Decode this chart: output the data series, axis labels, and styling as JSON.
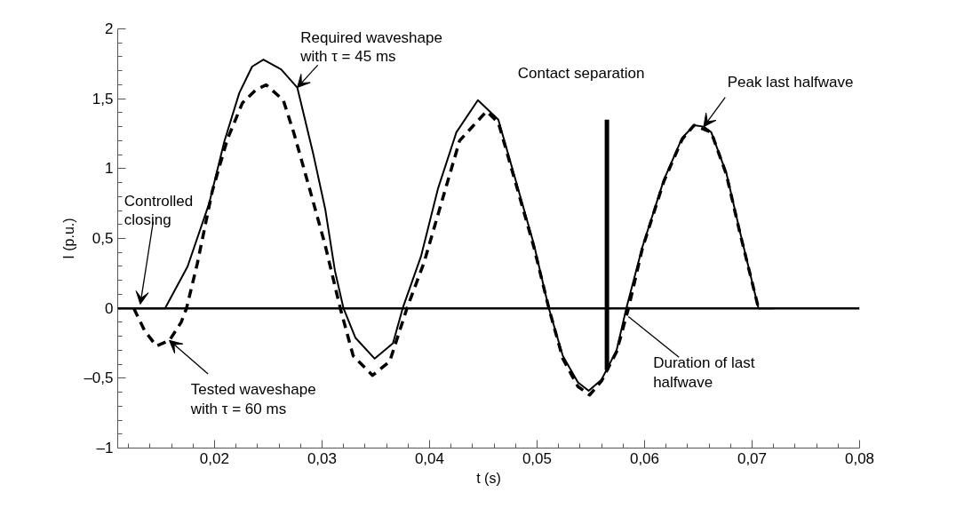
{
  "chart_data": {
    "type": "line",
    "xlabel": "t (s)",
    "ylabel": "I (p.u.)",
    "xlim": [
      0.011,
      0.08
    ],
    "ylim": [
      -1,
      2
    ],
    "xticks": [
      {
        "value": 0.012,
        "label": null
      },
      {
        "value": 0.014,
        "label": null
      },
      {
        "value": 0.016,
        "label": null
      },
      {
        "value": 0.018,
        "label": null
      },
      {
        "value": 0.02,
        "label": "0,02"
      },
      {
        "value": 0.022,
        "label": null
      },
      {
        "value": 0.024,
        "label": null
      },
      {
        "value": 0.026,
        "label": null
      },
      {
        "value": 0.028,
        "label": null
      },
      {
        "value": 0.03,
        "label": "0,03"
      },
      {
        "value": 0.032,
        "label": null
      },
      {
        "value": 0.034,
        "label": null
      },
      {
        "value": 0.036,
        "label": null
      },
      {
        "value": 0.038,
        "label": null
      },
      {
        "value": 0.04,
        "label": "0,04"
      },
      {
        "value": 0.042,
        "label": null
      },
      {
        "value": 0.044,
        "label": null
      },
      {
        "value": 0.046,
        "label": null
      },
      {
        "value": 0.048,
        "label": null
      },
      {
        "value": 0.05,
        "label": "0,05"
      },
      {
        "value": 0.052,
        "label": null
      },
      {
        "value": 0.054,
        "label": null
      },
      {
        "value": 0.056,
        "label": null
      },
      {
        "value": 0.058,
        "label": null
      },
      {
        "value": 0.06,
        "label": "0,06"
      },
      {
        "value": 0.062,
        "label": null
      },
      {
        "value": 0.064,
        "label": null
      },
      {
        "value": 0.066,
        "label": null
      },
      {
        "value": 0.068,
        "label": null
      },
      {
        "value": 0.07,
        "label": "0,07"
      },
      {
        "value": 0.072,
        "label": null
      },
      {
        "value": 0.074,
        "label": null
      },
      {
        "value": 0.076,
        "label": null
      },
      {
        "value": 0.078,
        "label": null
      },
      {
        "value": 0.08,
        "label": "0,08"
      }
    ],
    "yticks": [
      {
        "value": -1,
        "label": "–1"
      },
      {
        "value": -0.9,
        "label": null
      },
      {
        "value": -0.8,
        "label": null
      },
      {
        "value": -0.7,
        "label": null
      },
      {
        "value": -0.6,
        "label": null
      },
      {
        "value": -0.5,
        "label": "–0,5"
      },
      {
        "value": -0.4,
        "label": null
      },
      {
        "value": -0.3,
        "label": null
      },
      {
        "value": -0.2,
        "label": null
      },
      {
        "value": -0.1,
        "label": null
      },
      {
        "value": 0,
        "label": "0"
      },
      {
        "value": 0.1,
        "label": null
      },
      {
        "value": 0.2,
        "label": null
      },
      {
        "value": 0.3,
        "label": null
      },
      {
        "value": 0.4,
        "label": null
      },
      {
        "value": 0.5,
        "label": "0,5"
      },
      {
        "value": 0.6,
        "label": null
      },
      {
        "value": 0.7,
        "label": null
      },
      {
        "value": 0.8,
        "label": null
      },
      {
        "value": 0.9,
        "label": null
      },
      {
        "value": 1,
        "label": "1"
      },
      {
        "value": 1.1,
        "label": null
      },
      {
        "value": 1.2,
        "label": null
      },
      {
        "value": 1.3,
        "label": null
      },
      {
        "value": 1.4,
        "label": null
      },
      {
        "value": 1.5,
        "label": "1,5"
      },
      {
        "value": 1.6,
        "label": null
      },
      {
        "value": 1.7,
        "label": null
      },
      {
        "value": 1.8,
        "label": null
      },
      {
        "value": 1.9,
        "label": null
      },
      {
        "value": 2,
        "label": "2"
      }
    ],
    "series": [
      {
        "color": "#000000",
        "line_style": "solid",
        "x": [
          0.011,
          0.0154,
          0.0175,
          0.0195,
          0.0209,
          0.0223,
          0.0235,
          0.02455,
          0.0262,
          0.0277,
          0.0292,
          0.0303,
          0.0312,
          0.032,
          0.0331,
          0.0349,
          0.0366,
          0.0375,
          0.0392,
          0.0408,
          0.0425,
          0.0445,
          0.0464,
          0.048,
          0.0497,
          0.0511,
          0.0524,
          0.0538,
          0.0548,
          0.056,
          0.0574,
          0.0583,
          0.0598,
          0.0618,
          0.0635,
          0.0646,
          0.0655,
          0.0662,
          0.0676,
          0.0689,
          0.0706,
          0.072
        ],
        "values": [
          0,
          0,
          0.3,
          0.75,
          1.19,
          1.54,
          1.73,
          1.78,
          1.71,
          1.58,
          1.1,
          0.71,
          0.27,
          0,
          -0.21,
          -0.36,
          -0.25,
          0,
          0.37,
          0.86,
          1.26,
          1.49,
          1.35,
          0.92,
          0.46,
          0,
          -0.34,
          -0.53,
          -0.59,
          -0.51,
          -0.3,
          0,
          0.44,
          0.92,
          1.22,
          1.31,
          1.3,
          1.26,
          0.97,
          0.54,
          0,
          0
        ]
      },
      {
        "color": "#000000",
        "line_style": "dashed",
        "x": [
          0.0125,
          0.0135,
          0.0146,
          0.0158,
          0.0169,
          0.0174,
          0.0184,
          0.0198,
          0.0212,
          0.0226,
          0.0238,
          0.0248,
          0.0264,
          0.0274,
          0.0289,
          0.0303,
          0.0317,
          0.0329,
          0.0347,
          0.0363,
          0.0379,
          0.0395,
          0.0412,
          0.0428,
          0.0453,
          0.0464,
          0.048,
          0.0497,
          0.0511,
          0.0524,
          0.0538,
          0.0549,
          0.056,
          0.0574,
          0.0585,
          0.0598,
          0.0618,
          0.0635,
          0.0646,
          0.0662,
          0.0676,
          0.0689,
          0.0706
        ],
        "values": [
          0,
          -0.16,
          -0.27,
          -0.23,
          -0.1,
          0,
          0.32,
          0.84,
          1.21,
          1.47,
          1.56,
          1.6,
          1.49,
          1.25,
          0.84,
          0.45,
          0,
          -0.34,
          -0.48,
          -0.38,
          0,
          0.33,
          0.78,
          1.2,
          1.41,
          1.33,
          0.9,
          0.44,
          0,
          -0.36,
          -0.56,
          -0.62,
          -0.52,
          -0.31,
          0,
          0.43,
          0.91,
          1.21,
          1.31,
          1.26,
          0.96,
          0.53,
          0
        ]
      },
      {
        "color": "#000000",
        "line_style": "solid",
        "x": [
          0.0565,
          0.0565
        ],
        "values": [
          1.35,
          -0.44
        ]
      }
    ],
    "ref_lines": [
      {
        "axis": "y",
        "value": 0,
        "color": "#000000"
      }
    ],
    "annotations": [
      {
        "text": "Required waveshape\nwith τ = 45 ms",
        "x": 0.0277,
        "y": 1.58
      },
      {
        "text": "Contact separation",
        "x": 0.0565,
        "y": 1.35
      },
      {
        "text": "Peak last halfwave",
        "x": 0.0655,
        "y": 1.3
      },
      {
        "text": "Controlled\nclosing",
        "x": 0.0131,
        "y": 0.03
      },
      {
        "text": "Tested waveshape\nwith τ = 60 ms",
        "x": 0.0158,
        "y": -0.23
      },
      {
        "text": "Duration of last\nhalfwave",
        "x": 0.0585,
        "y": -0.06
      }
    ],
    "grid": false
  }
}
